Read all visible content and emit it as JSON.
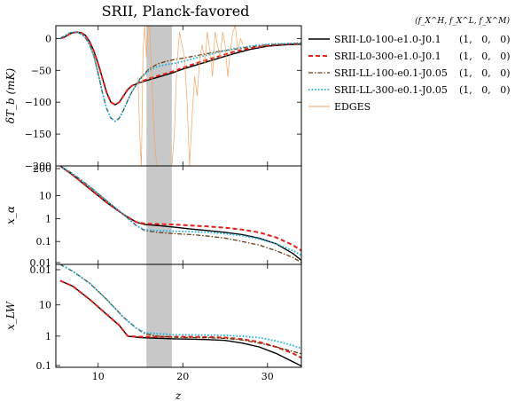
{
  "chart_data": {
    "type": "line",
    "title": "SRII, Planck-favored",
    "xlabel": "z",
    "xlim": [
      5,
      34
    ],
    "xticks": [
      10,
      20,
      30
    ],
    "shaded_band": [
      15.7,
      18.7
    ],
    "legend": {
      "placement": "right",
      "header": "(f_X^H, f_X^L, f_X^M)",
      "entries": [
        {
          "name": "SRII-L0-100-e1.0-J0.1",
          "params": "(1,   0,   0)",
          "color": "#000000",
          "style": "solid"
        },
        {
          "name": "SRII-L0-300-e1.0-J0.1",
          "params": "(1,   0,   0)",
          "color": "#e3201b",
          "style": "dashed"
        },
        {
          "name": "SRII-LL-100-e0.1-J0.05",
          "params": "(1,   0,   0)",
          "color": "#6b3a10",
          "style": "dashdot"
        },
        {
          "name": "SRII-LL-300-e0.1-J0.05",
          "params": "(1,   0,   0)",
          "color": "#1ab0e0",
          "style": "dotted"
        },
        {
          "name": "EDGES",
          "params": "",
          "color": "#f4a460",
          "style": "thin"
        }
      ]
    },
    "panels": [
      {
        "id": "top",
        "ylabel": "δT_b (mK)",
        "ylim": [
          -200,
          20
        ],
        "scale": "linear",
        "yticks": [
          0,
          -50,
          -100,
          -150,
          -200
        ],
        "series": [
          {
            "name": "SRII-L0-100-e1.0-J0.1",
            "x": [
              5.5,
              6,
              6.5,
              7,
              7.5,
              8,
              8.5,
              9,
              9.5,
              10,
              10.5,
              11,
              11.5,
              12,
              12.5,
              13,
              13.5,
              14,
              15,
              16,
              17,
              18,
              19,
              20,
              22,
              24,
              26,
              28,
              30,
              32,
              34
            ],
            "y": [
              0,
              2,
              6,
              9,
              10,
              9,
              5,
              -5,
              -20,
              -40,
              -62,
              -85,
              -100,
              -104,
              -100,
              -90,
              -80,
              -74,
              -69,
              -65,
              -61,
              -57,
              -53,
              -48,
              -40,
              -32,
              -24,
              -17,
              -12,
              -10,
              -9
            ]
          },
          {
            "name": "SRII-L0-300-e1.0-J0.1",
            "x": [
              5.5,
              6,
              6.5,
              7,
              7.5,
              8,
              8.5,
              9,
              9.5,
              10,
              10.5,
              11,
              11.5,
              12,
              12.5,
              13,
              13.5,
              14,
              15,
              16,
              17,
              18,
              19,
              20,
              22,
              24,
              26,
              28,
              30,
              32,
              34
            ],
            "y": [
              0,
              2,
              6,
              9,
              10,
              9,
              5,
              -5,
              -20,
              -40,
              -62,
              -85,
              -100,
              -104,
              -100,
              -90,
              -80,
              -74,
              -68,
              -63,
              -59,
              -55,
              -51,
              -46,
              -37,
              -29,
              -21,
              -15,
              -11,
              -9,
              -8
            ]
          },
          {
            "name": "SRII-LL-100-e0.1-J0.05",
            "x": [
              5.5,
              6,
              6.5,
              7,
              7.5,
              8,
              8.5,
              9,
              9.5,
              10,
              10.5,
              11,
              11.5,
              12,
              12.5,
              13,
              13.5,
              14,
              15,
              16,
              17,
              18,
              19,
              20,
              22,
              24,
              26,
              28,
              30,
              32,
              34
            ],
            "y": [
              0,
              4,
              8,
              10,
              10,
              7,
              1,
              -10,
              -28,
              -55,
              -85,
              -110,
              -125,
              -130,
              -125,
              -112,
              -97,
              -83,
              -62,
              -48,
              -40,
              -36,
              -33,
              -31,
              -26,
              -21,
              -17,
              -13,
              -10,
              -9,
              -8
            ]
          },
          {
            "name": "SRII-LL-300-e0.1-J0.05",
            "x": [
              5.5,
              6,
              6.5,
              7,
              7.5,
              8,
              8.5,
              9,
              9.5,
              10,
              10.5,
              11,
              11.5,
              12,
              12.5,
              13,
              13.5,
              14,
              15,
              16,
              17,
              18,
              19,
              20,
              22,
              24,
              26,
              28,
              30,
              32,
              34
            ],
            "y": [
              0,
              4,
              8,
              10,
              10,
              7,
              1,
              -10,
              -28,
              -55,
              -85,
              -110,
              -125,
              -130,
              -125,
              -112,
              -97,
              -83,
              -63,
              -50,
              -44,
              -41,
              -39,
              -36,
              -29,
              -22,
              -16,
              -12,
              -9,
              -8,
              -7
            ]
          },
          {
            "name": "EDGES",
            "x": [
              14.7,
              14.9,
              15.1,
              15.3,
              15.5,
              15.7,
              15.9,
              16.1,
              16.3,
              16.6,
              16.9,
              17.2,
              17.5,
              17.8,
              18.1,
              18.4,
              18.7,
              19.0,
              19.3,
              19.6,
              19.9,
              20.2,
              20.5,
              20.8,
              21.1,
              21.4,
              21.7,
              22.0,
              22.3,
              22.6,
              22.9,
              23.2,
              23.5,
              23.8,
              24.1,
              24.4,
              24.7,
              25.0,
              25.3,
              25.6,
              25.9,
              26.2,
              26.5,
              26.8,
              27.1
            ],
            "y": [
              -60,
              -150,
              -200,
              -20,
              20,
              -30,
              20,
              15,
              -50,
              -150,
              -200,
              -200,
              -200,
              -200,
              -200,
              -200,
              -200,
              -150,
              -40,
              10,
              -10,
              -30,
              -100,
              -200,
              -120,
              -60,
              -90,
              -30,
              -10,
              -40,
              10,
              -20,
              -60,
              10,
              -10,
              -30,
              10,
              -10,
              -60,
              -20,
              10,
              20,
              -20,
              0,
              -10
            ]
          }
        ]
      },
      {
        "id": "middle",
        "ylabel": "x_α",
        "ylim": [
          0.01,
          200
        ],
        "scale": "log",
        "ytick_labels": [
          "200",
          "10",
          "1",
          "0.1",
          "0.01"
        ],
        "ytick_values": [
          200,
          10,
          1,
          0.1,
          0.01
        ],
        "series": [
          {
            "name": "SRII-L0-100-e1.0-J0.1",
            "x": [
              5.5,
              7,
              9,
              11,
              13,
              14.5,
              15.5,
              17,
              19,
              21,
              23,
              25,
              27,
              29,
              31,
              33,
              34
            ],
            "y": [
              200,
              80,
              20,
              5,
              1.5,
              0.7,
              0.55,
              0.5,
              0.42,
              0.35,
              0.3,
              0.25,
              0.2,
              0.14,
              0.08,
              0.03,
              0.015
            ]
          },
          {
            "name": "SRII-L0-300-e1.0-J0.1",
            "x": [
              5.5,
              7,
              9,
              11,
              13,
              14.5,
              15.5,
              17,
              19,
              21,
              23,
              25,
              27,
              29,
              31,
              33,
              34
            ],
            "y": [
              200,
              80,
              20,
              5,
              1.5,
              0.7,
              0.6,
              0.58,
              0.55,
              0.5,
              0.45,
              0.4,
              0.33,
              0.25,
              0.15,
              0.07,
              0.04
            ]
          },
          {
            "name": "SRII-LL-100-e0.1-J0.05",
            "x": [
              5.5,
              7,
              9,
              11,
              13,
              14.5,
              15.5,
              17,
              19,
              21,
              23,
              25,
              27,
              29,
              31,
              33,
              34
            ],
            "y": [
              200,
              90,
              25,
              6,
              1.5,
              0.5,
              0.3,
              0.25,
              0.22,
              0.2,
              0.17,
              0.14,
              0.1,
              0.07,
              0.04,
              0.02,
              0.012
            ]
          },
          {
            "name": "SRII-LL-300-e0.1-J0.05",
            "x": [
              5.5,
              7,
              9,
              11,
              13,
              14.5,
              15.5,
              17,
              19,
              21,
              23,
              25,
              27,
              29,
              31,
              33,
              34
            ],
            "y": [
              200,
              90,
              25,
              6,
              1.5,
              0.5,
              0.32,
              0.3,
              0.28,
              0.27,
              0.25,
              0.22,
              0.18,
              0.13,
              0.08,
              0.04,
              0.025
            ]
          }
        ]
      },
      {
        "id": "bottom",
        "ylabel": "x_LW",
        "ylim": [
          0.1,
          0.01
        ],
        "scale": "log",
        "ytick_labels": [
          "0.01",
          "10",
          "1",
          "0.1"
        ],
        "ytick_values": [
          0.01,
          10,
          1,
          0.1
        ],
        "series": [
          {
            "name": "SRII-L0-100-e1.0-J0.1",
            "x": [
              5.5,
              7,
              9,
              11,
              12.5,
              13.5,
              15,
              17,
              19,
              21,
              23,
              25,
              27,
              29,
              31,
              33,
              34
            ],
            "y": [
              60,
              40,
              15,
              5,
              2.2,
              1.0,
              0.9,
              0.85,
              0.82,
              0.8,
              0.77,
              0.73,
              0.6,
              0.45,
              0.28,
              0.15,
              0.11
            ]
          },
          {
            "name": "SRII-L0-300-e1.0-J0.1",
            "x": [
              5.5,
              7,
              9,
              11,
              12.5,
              13.5,
              15,
              17,
              19,
              21,
              23,
              25,
              27,
              29,
              31,
              33,
              34
            ],
            "y": [
              60,
              40,
              15,
              5,
              2.2,
              1.0,
              0.95,
              0.95,
              0.95,
              0.95,
              0.93,
              0.9,
              0.8,
              0.65,
              0.45,
              0.28,
              0.2
            ]
          },
          {
            "name": "SRII-LL-100-e0.1-J0.05",
            "x": [
              5.5,
              7,
              9,
              11,
              13,
              14.5,
              15.5,
              17,
              19,
              21,
              23,
              25,
              27,
              29,
              31,
              33,
              34
            ],
            "y": [
              200,
              120,
              50,
              15,
              4,
              1.8,
              1.2,
              1.0,
              0.92,
              0.9,
              0.88,
              0.85,
              0.75,
              0.6,
              0.45,
              0.32,
              0.27
            ]
          },
          {
            "name": "SRII-LL-300-e0.1-J0.05",
            "x": [
              5.5,
              7,
              9,
              11,
              13,
              14.5,
              15.5,
              17,
              19,
              21,
              23,
              25,
              27,
              29,
              31,
              33,
              34
            ],
            "y": [
              200,
              120,
              50,
              15,
              4,
              1.8,
              1.3,
              1.2,
              1.1,
              1.1,
              1.08,
              1.05,
              1.0,
              0.9,
              0.7,
              0.5,
              0.4
            ]
          }
        ]
      }
    ]
  }
}
